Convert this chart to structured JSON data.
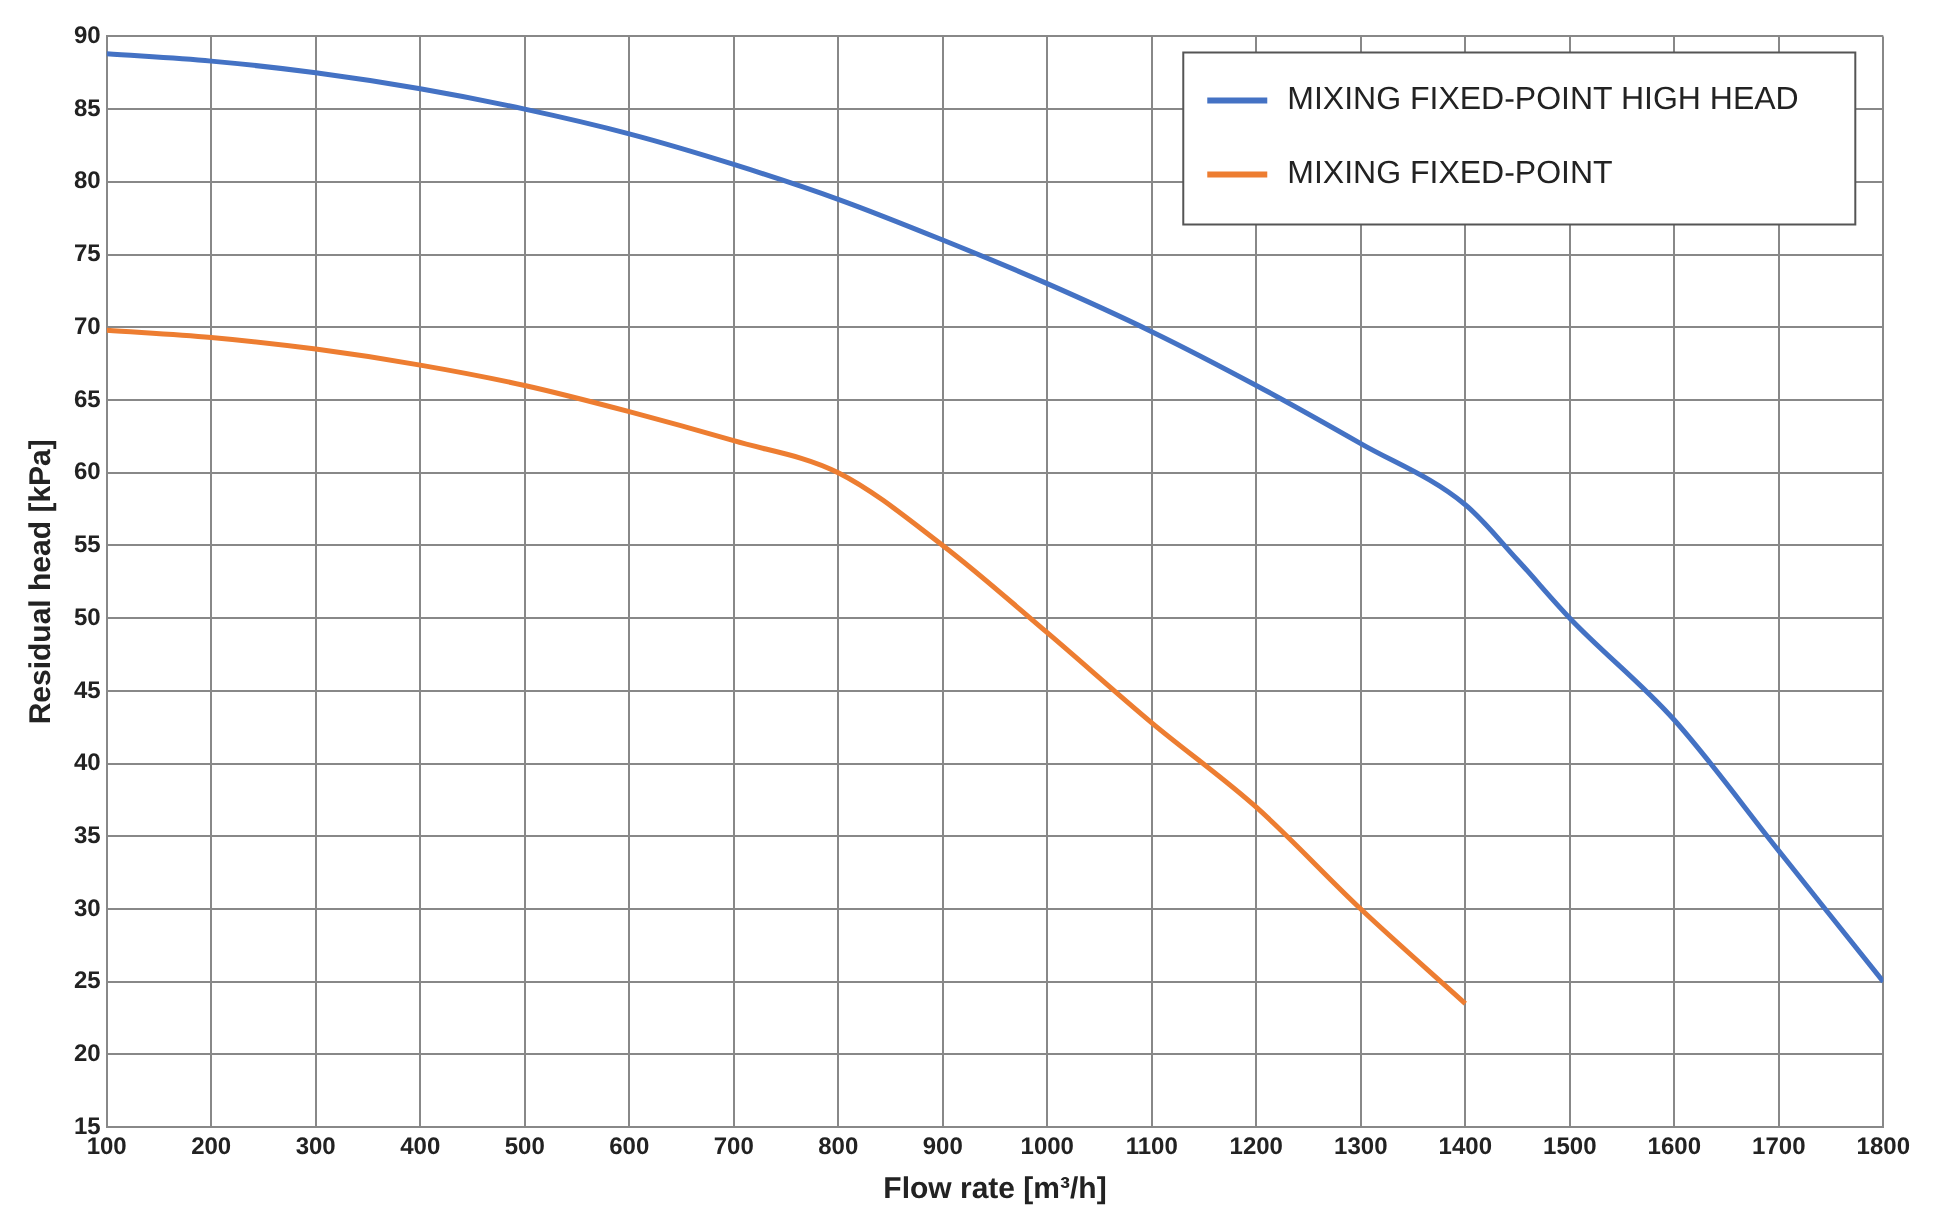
{
  "chart_data": {
    "type": "line",
    "xlabel": "Flow rate [m³/h]",
    "ylabel": "Residual head [kPa]",
    "xlim": [
      100,
      1800
    ],
    "xticks": [
      100,
      200,
      300,
      400,
      500,
      600,
      700,
      800,
      900,
      1000,
      1100,
      1200,
      1300,
      1400,
      1500,
      1600,
      1700,
      1800
    ],
    "ylim": [
      15,
      90
    ],
    "yticks": [
      15,
      20,
      25,
      30,
      35,
      40,
      45,
      50,
      55,
      60,
      65,
      70,
      75,
      80,
      85,
      90
    ],
    "grid": true,
    "legend": "top right",
    "marker": "none",
    "line_style": "solid",
    "series": [
      {
        "name": "MIXING FIXED-POINT HIGH HEAD",
        "color": "#4472c4",
        "x": [
          100,
          200,
          300,
          400,
          500,
          600,
          700,
          800,
          900,
          1000,
          1100,
          1200,
          1300,
          1400,
          1450,
          1500,
          1600,
          1700,
          1800
        ],
        "values": [
          88.8,
          88.3,
          87.5,
          86.4,
          85,
          83.3,
          81.2,
          78.8,
          76,
          73,
          69.7,
          66,
          62,
          57.8,
          54,
          50,
          43,
          34,
          25
        ]
      },
      {
        "name": "MIXING FIXED-POINT",
        "color": "#ed7d31",
        "x": [
          100,
          200,
          300,
          400,
          500,
          600,
          700,
          800,
          900,
          1000,
          1100,
          1200,
          1300,
          1400
        ],
        "values": [
          69.8,
          69.3,
          68.5,
          67.4,
          66,
          64.2,
          62.2,
          60,
          55,
          49,
          42.8,
          37,
          30,
          23.5
        ]
      }
    ]
  }
}
